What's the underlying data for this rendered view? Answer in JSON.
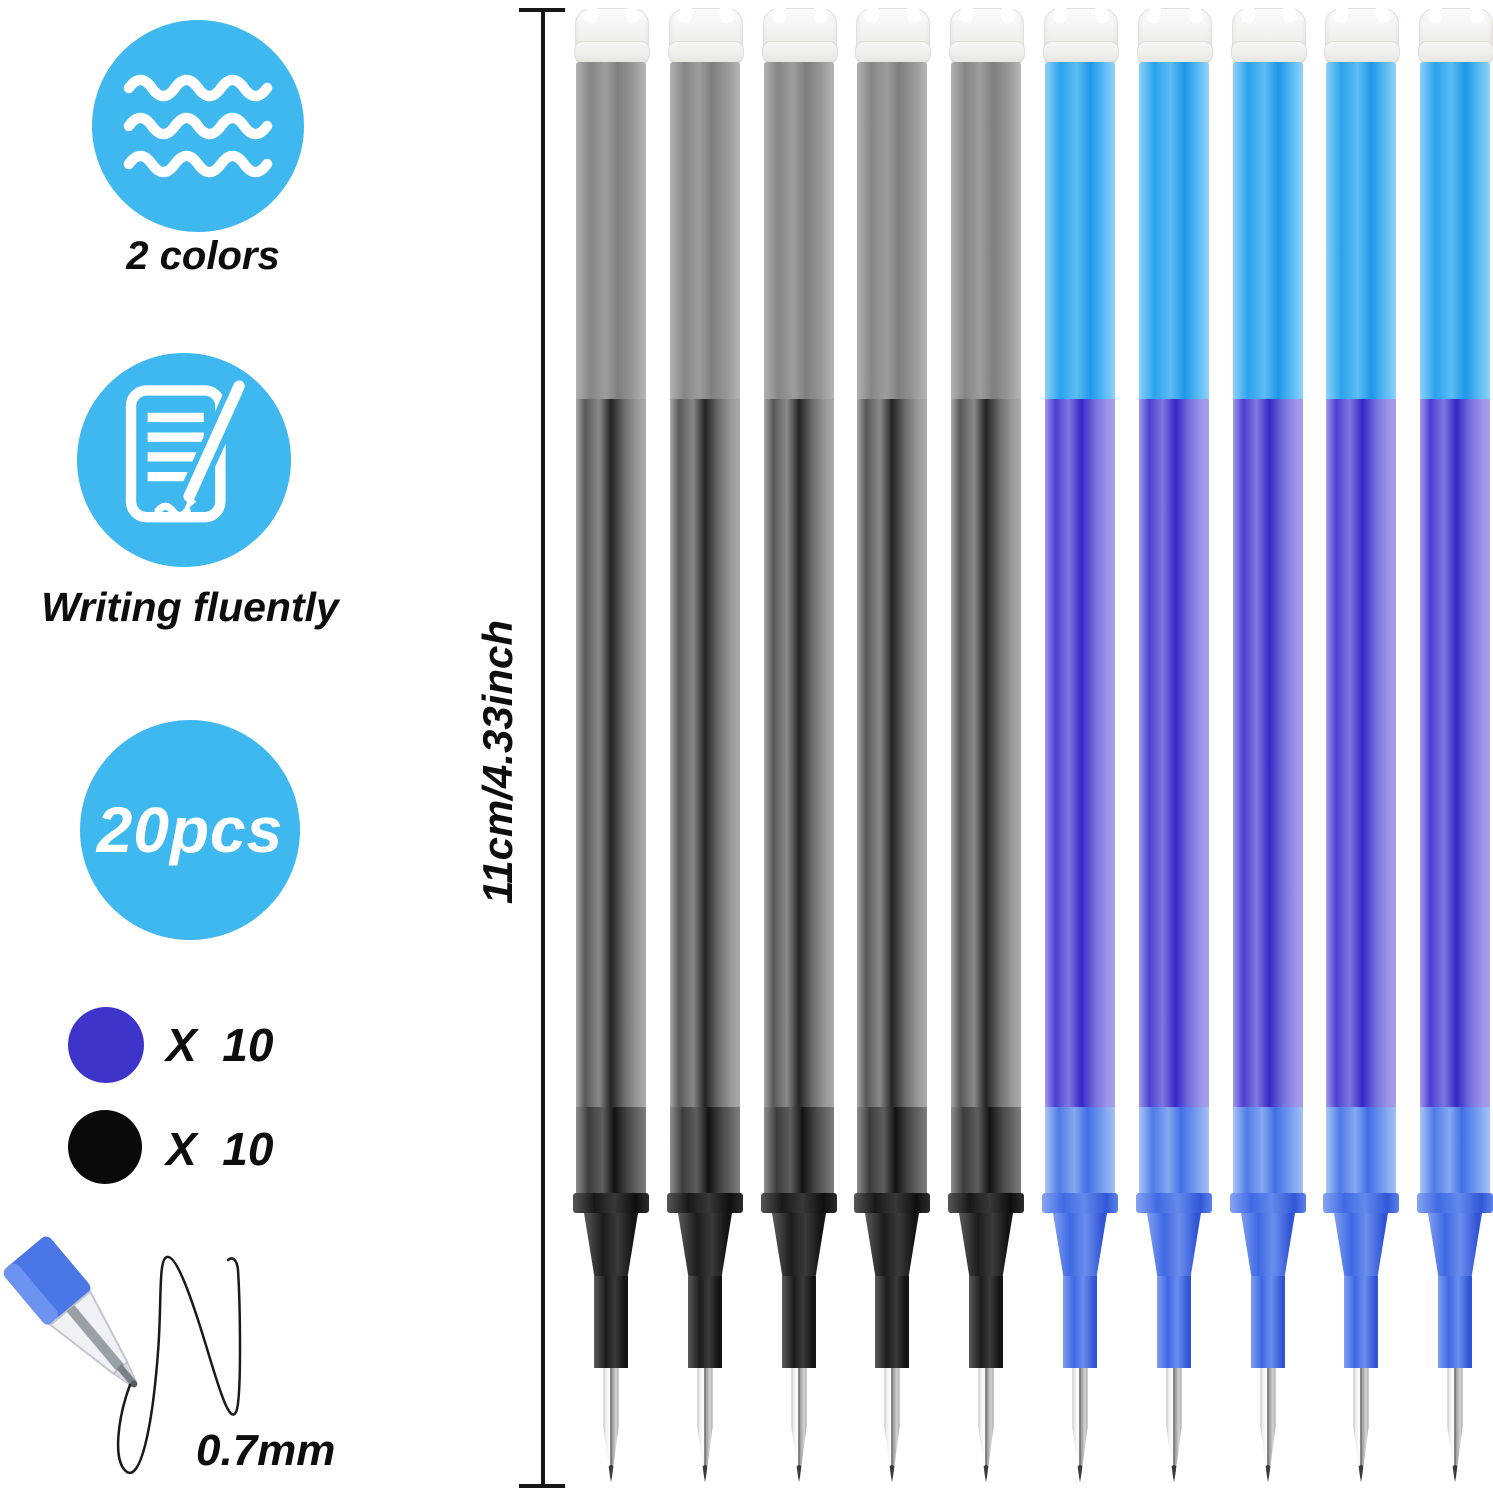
{
  "accent": {
    "light_blue": "#3FB8F0",
    "royal_blue": "#3D35C9",
    "black": "#0A0A0A"
  },
  "features": [
    {
      "id": "colors",
      "icon": "waves-icon",
      "label": "2 colors"
    },
    {
      "id": "writing",
      "icon": "writing-document-icon",
      "label": "Writing fluently"
    },
    {
      "id": "count",
      "icon": "count-badge",
      "label": "20pcs"
    }
  ],
  "quantities": [
    {
      "color_name": "blue",
      "swatch_color": "#3D35C9",
      "label": "X  10"
    },
    {
      "color_name": "black",
      "swatch_color": "#0A0A0A",
      "label": "X  10"
    }
  ],
  "tip": {
    "label": "0.7mm"
  },
  "dimension": {
    "label": "11cm/4.33inch"
  },
  "refills": {
    "total_label": "20pcs",
    "colors": [
      "black",
      "black",
      "black",
      "black",
      "black",
      "blue",
      "blue",
      "blue",
      "blue",
      "blue"
    ]
  }
}
